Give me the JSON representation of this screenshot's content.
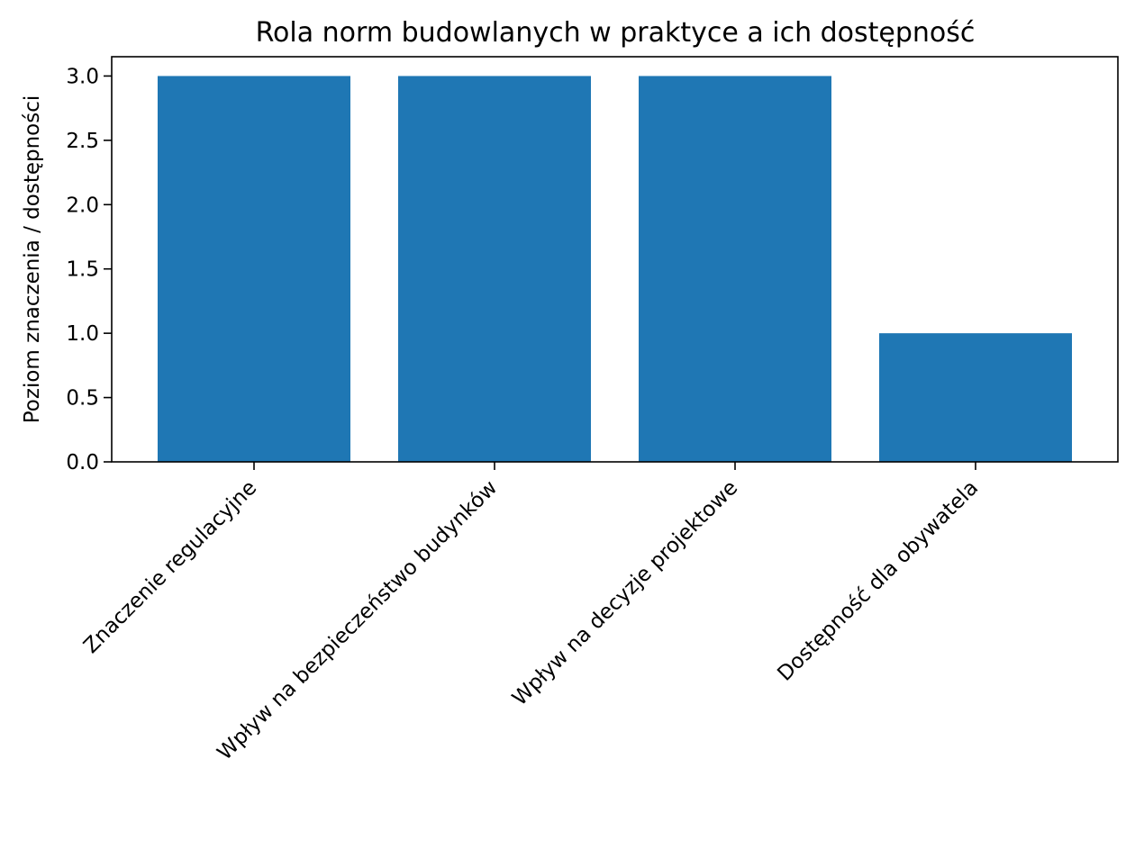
{
  "chart_data": {
    "type": "bar",
    "title": "Rola norm budowlanych w praktyce a ich dostępność",
    "xlabel": "",
    "ylabel": "Poziom znaczenia / dostępności",
    "categories": [
      "Znaczenie regulacyjne",
      "Wpływ na bezpieczeństwo budynków",
      "Wpływ na decyzje projektowe",
      "Dostępność dla obywatela"
    ],
    "values": [
      3,
      3,
      3,
      1
    ],
    "ylim": [
      0,
      3.15
    ],
    "yticks": [
      "0.0",
      "0.5",
      "1.0",
      "1.5",
      "2.0",
      "2.5",
      "3.0"
    ],
    "bar_color": "#1f77b4",
    "grid": false,
    "legend": "none"
  }
}
